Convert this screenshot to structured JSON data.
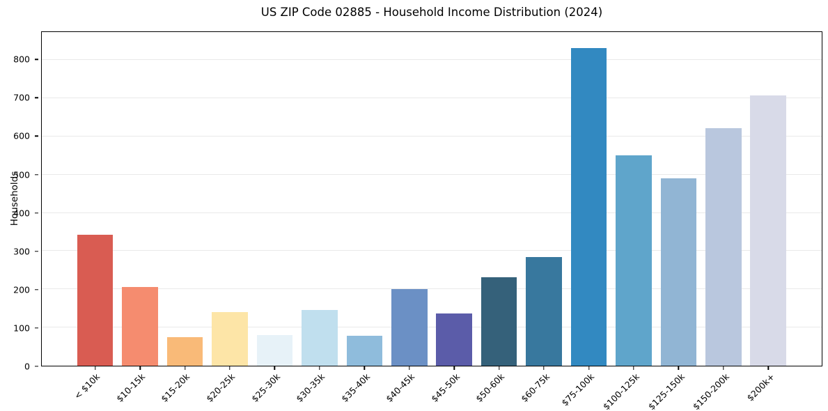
{
  "title": "US ZIP Code 02885 - Household Income Distribution (2024)",
  "chart_data": {
    "type": "bar",
    "title": "US ZIP Code 02885 - Household Income Distribution (2024)",
    "xlabel": "",
    "ylabel": "Households",
    "categories": [
      "< $10k",
      "$10-15k",
      "$15-20k",
      "$20-25k",
      "$25-30k",
      "$30-35k",
      "$35-40k",
      "$40-45k",
      "$45-50k",
      "$50-60k",
      "$60-75k",
      "$75-100k",
      "$100-125k",
      "$125-150k",
      "$150-200k",
      "$200k+"
    ],
    "values": [
      342,
      206,
      74,
      140,
      81,
      146,
      79,
      201,
      137,
      231,
      285,
      832,
      551,
      490,
      621,
      708
    ],
    "bar_colors": [
      "#d95c52",
      "#f58c6f",
      "#f9ba78",
      "#fde5a7",
      "#e7f2f8",
      "#c0dfee",
      "#8fbcdc",
      "#6b90c5",
      "#5b5ca9",
      "#35617a",
      "#38789e",
      "#3289c1",
      "#5fa5cb",
      "#91b5d4",
      "#b9c7de",
      "#d8dae8"
    ],
    "yticks": [
      0,
      100,
      200,
      300,
      400,
      500,
      600,
      700,
      800
    ],
    "ylim": [
      0,
      873
    ],
    "xtick_rotation_deg": 45,
    "grid": "horizontal",
    "grid_color": "#e9e9e9",
    "spine_color": "#000000",
    "text_color": "#000000",
    "background_color": "#ffffff",
    "legend": "none"
  }
}
